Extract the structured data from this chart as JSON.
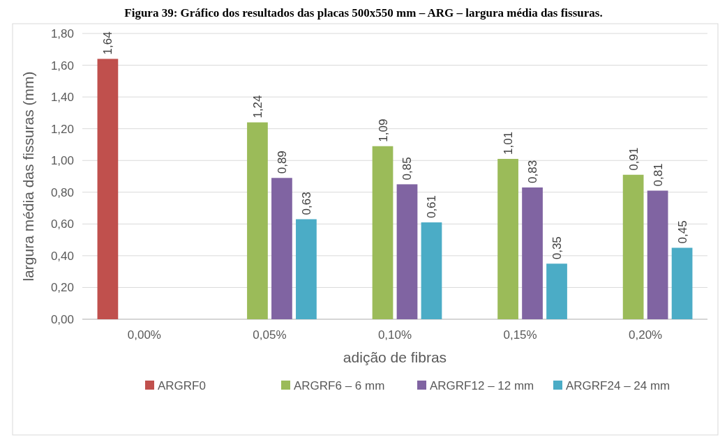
{
  "chart_data": {
    "type": "bar",
    "title": "Figura 39: Gráfico dos resultados das placas 500x550 mm – ARG – largura média das fissuras.",
    "xlabel": "adição de fibras",
    "ylabel": "largura média das fissuras (mm)",
    "categories": [
      "0,00%",
      "0,05%",
      "0,10%",
      "0,15%",
      "0,20%"
    ],
    "series": [
      {
        "name": "ARGRF0",
        "color": "#c0504d",
        "values": [
          1.64,
          null,
          null,
          null,
          null
        ],
        "value_labels": [
          "1,64",
          null,
          null,
          null,
          null
        ]
      },
      {
        "name": "ARGRF6 – 6 mm",
        "color": "#9bbb59",
        "values": [
          null,
          1.24,
          1.09,
          1.01,
          0.91
        ],
        "value_labels": [
          null,
          "1,24",
          "1,09",
          "1,01",
          "0,91"
        ]
      },
      {
        "name": "ARGRF12 – 12 mm",
        "color": "#8064a2",
        "values": [
          null,
          0.89,
          0.85,
          0.83,
          0.81
        ],
        "value_labels": [
          null,
          "0,89",
          "0,85",
          "0,83",
          "0,81"
        ]
      },
      {
        "name": "ARGRF24 – 24 mm",
        "color": "#4bacc6",
        "values": [
          null,
          0.63,
          0.61,
          0.35,
          0.45
        ],
        "value_labels": [
          null,
          "0,63",
          "0,61",
          "0,35",
          "0,45"
        ]
      }
    ],
    "ylim": [
      0,
      1.8
    ],
    "yticks": [
      {
        "value": 0,
        "label": "0,00"
      },
      {
        "value": 0.2,
        "label": "0,20"
      },
      {
        "value": 0.4,
        "label": "0,40"
      },
      {
        "value": 0.6,
        "label": "0,60"
      },
      {
        "value": 0.8,
        "label": "0,80"
      },
      {
        "value": 1,
        "label": "1,00"
      },
      {
        "value": 1.2,
        "label": "1,20"
      },
      {
        "value": 1.4,
        "label": "1,40"
      },
      {
        "value": 1.6,
        "label": "1,60"
      },
      {
        "value": 1.8,
        "label": "1,80"
      }
    ],
    "grid": "y",
    "legend": "bottom"
  }
}
